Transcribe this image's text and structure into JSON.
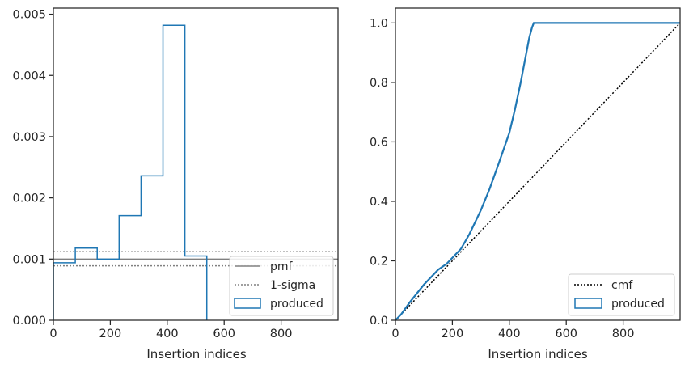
{
  "chart_data": [
    {
      "type": "histogram",
      "xlabel": "Insertion indices",
      "ylabel": "",
      "xlim": [
        0,
        1000
      ],
      "ylim": [
        0,
        0.0051
      ],
      "xticks": [
        0,
        200,
        400,
        600,
        800
      ],
      "xtick_labels": [
        "0",
        "200",
        "400",
        "600",
        "800"
      ],
      "yticks": [
        0,
        0.001,
        0.002,
        0.003,
        0.004,
        0.005
      ],
      "ytick_labels": [
        "0.000",
        "0.001",
        "0.002",
        "0.003",
        "0.004",
        "0.005"
      ],
      "grid": false,
      "legend_position": "lower-right",
      "pmf": 0.001,
      "sigma_band": [
        0.00089,
        0.00112
      ],
      "bin_edges": [
        0,
        77,
        154,
        231,
        308,
        385,
        462,
        539
      ],
      "values": [
        0.00094,
        0.00118,
        0.001,
        0.00171,
        0.00236,
        0.00482,
        0.00105
      ],
      "legend": [
        "pmf",
        "1-sigma",
        "produced"
      ],
      "colors": {
        "produced": "#1f77b4",
        "pmf": "#808080",
        "sigma": "#808080"
      }
    },
    {
      "type": "line",
      "xlabel": "Insertion indices",
      "ylabel": "",
      "xlim": [
        0,
        1000
      ],
      "ylim": [
        0,
        1.05
      ],
      "xticks": [
        0,
        200,
        400,
        600,
        800
      ],
      "xtick_labels": [
        "0",
        "200",
        "400",
        "600",
        "800"
      ],
      "yticks": [
        0,
        0.2,
        0.4,
        0.6,
        0.8,
        1.0
      ],
      "ytick_labels": [
        "0.0",
        "0.2",
        "0.4",
        "0.6",
        "0.8",
        "1.0"
      ],
      "grid": false,
      "legend_position": "lower-right",
      "series": [
        {
          "name": "cmf",
          "style": "dotted",
          "color": "#000000",
          "x": [
            0,
            1000
          ],
          "y": [
            0,
            1.0
          ]
        },
        {
          "name": "produced",
          "style": "step",
          "color": "#1f77b4",
          "x": [
            0,
            20,
            50,
            100,
            150,
            180,
            200,
            230,
            260,
            300,
            330,
            360,
            400,
            420,
            440,
            460,
            470,
            480,
            486,
            1000
          ],
          "y": [
            0,
            0.02,
            0.06,
            0.12,
            0.17,
            0.19,
            0.21,
            0.24,
            0.29,
            0.37,
            0.44,
            0.52,
            0.63,
            0.71,
            0.8,
            0.9,
            0.95,
            0.985,
            1.0,
            1.0
          ]
        }
      ],
      "legend": [
        "cmf",
        "produced"
      ]
    }
  ]
}
